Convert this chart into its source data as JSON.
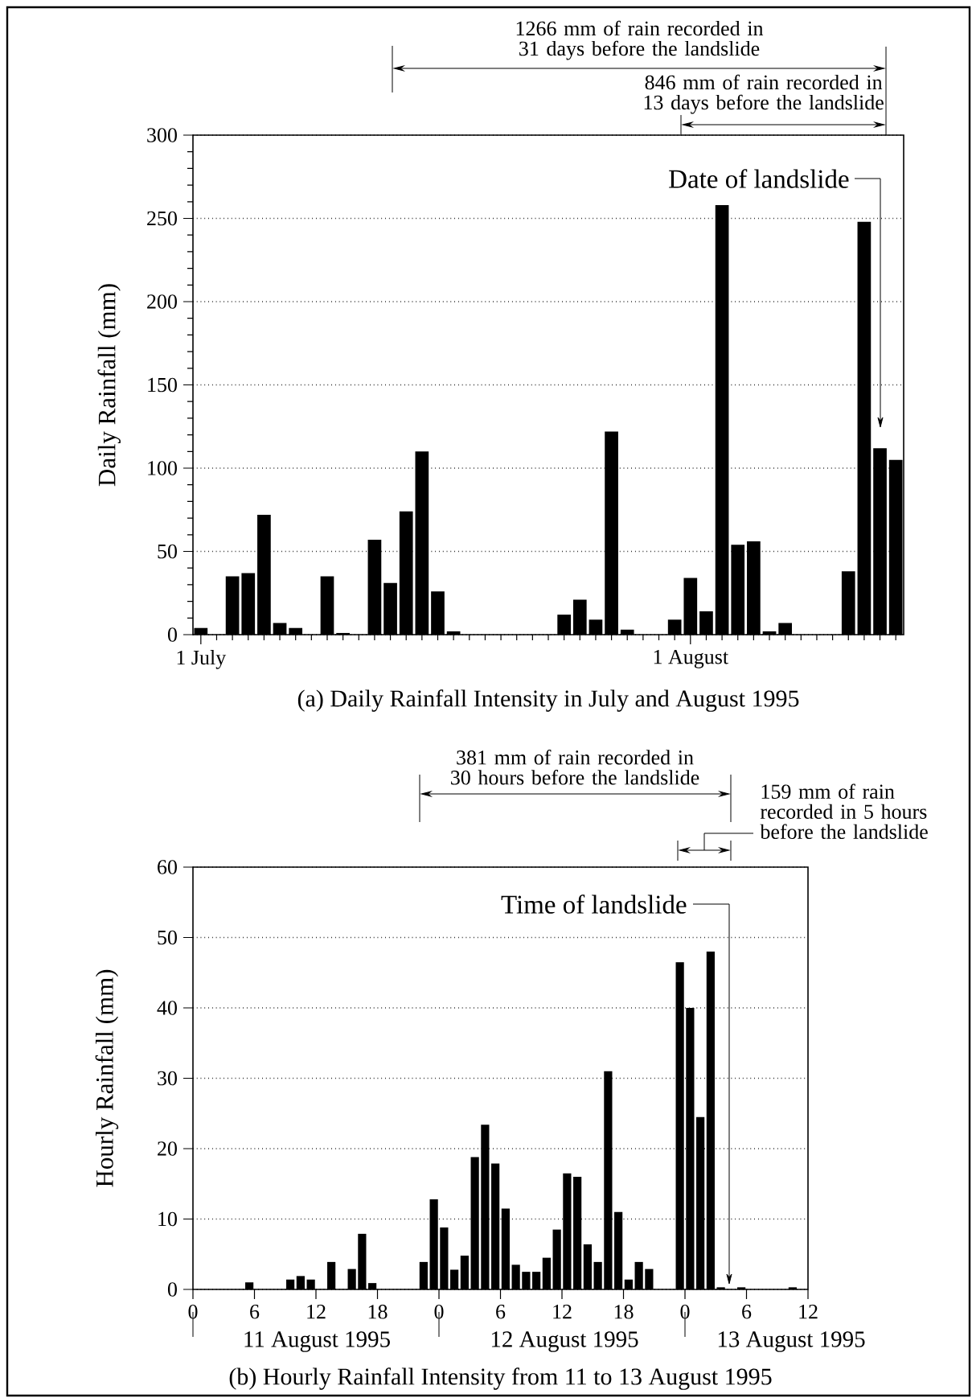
{
  "chart_data": [
    {
      "type": "bar",
      "title": "(a) Daily Rainfall Intensity in July and August 1995",
      "ylabel": "Daily Rainfall (mm)",
      "color": "#000000",
      "grid": "y",
      "x": [
        "1995-07-01",
        "1995-07-02",
        "1995-07-03",
        "1995-07-04",
        "1995-07-05",
        "1995-07-06",
        "1995-07-07",
        "1995-07-08",
        "1995-07-09",
        "1995-07-10",
        "1995-07-11",
        "1995-07-12",
        "1995-07-13",
        "1995-07-14",
        "1995-07-15",
        "1995-07-16",
        "1995-07-17",
        "1995-07-18",
        "1995-07-19",
        "1995-07-20",
        "1995-07-21",
        "1995-07-22",
        "1995-07-23",
        "1995-07-24",
        "1995-07-25",
        "1995-07-26",
        "1995-07-27",
        "1995-07-28",
        "1995-07-29",
        "1995-07-30",
        "1995-07-31",
        "1995-08-01",
        "1995-08-02",
        "1995-08-03",
        "1995-08-04",
        "1995-08-05",
        "1995-08-06",
        "1995-08-07",
        "1995-08-08",
        "1995-08-09",
        "1995-08-10",
        "1995-08-11",
        "1995-08-12",
        "1995-08-13",
        "1995-08-14"
      ],
      "values": [
        4,
        0,
        35,
        37,
        72,
        7,
        4,
        0,
        35,
        1,
        0,
        57,
        31,
        74,
        110,
        26,
        2,
        0,
        0,
        0,
        0,
        0,
        0,
        12,
        21,
        9,
        122,
        3,
        0,
        0,
        9,
        34,
        14,
        258,
        54,
        56,
        2,
        7,
        0,
        0,
        0,
        38,
        248,
        112,
        105
      ],
      "xlim": [
        "1995-06-30T12:00",
        "1995-08-14T12:00"
      ],
      "ylim": [
        0,
        300
      ],
      "xticks": [
        {
          "value": "1995-07-01",
          "label": "1 July"
        },
        {
          "value": "1995-07-02",
          "label": null
        },
        {
          "value": "1995-07-03",
          "label": null
        },
        {
          "value": "1995-07-04",
          "label": null
        },
        {
          "value": "1995-07-05",
          "label": null
        },
        {
          "value": "1995-07-06",
          "label": null
        },
        {
          "value": "1995-07-07",
          "label": null
        },
        {
          "value": "1995-07-08",
          "label": null
        },
        {
          "value": "1995-07-09",
          "label": null
        },
        {
          "value": "1995-07-10",
          "label": null
        },
        {
          "value": "1995-07-11",
          "label": null
        },
        {
          "value": "1995-07-12",
          "label": null
        },
        {
          "value": "1995-07-13",
          "label": null
        },
        {
          "value": "1995-07-14",
          "label": null
        },
        {
          "value": "1995-07-15",
          "label": null
        },
        {
          "value": "1995-07-16",
          "label": null
        },
        {
          "value": "1995-07-17",
          "label": null
        },
        {
          "value": "1995-07-18",
          "label": null
        },
        {
          "value": "1995-07-19",
          "label": null
        },
        {
          "value": "1995-07-20",
          "label": null
        },
        {
          "value": "1995-07-21",
          "label": null
        },
        {
          "value": "1995-07-22",
          "label": null
        },
        {
          "value": "1995-07-23",
          "label": null
        },
        {
          "value": "1995-07-24",
          "label": null
        },
        {
          "value": "1995-07-25",
          "label": null
        },
        {
          "value": "1995-07-26",
          "label": null
        },
        {
          "value": "1995-07-27",
          "label": null
        },
        {
          "value": "1995-07-28",
          "label": null
        },
        {
          "value": "1995-07-29",
          "label": null
        },
        {
          "value": "1995-07-30",
          "label": null
        },
        {
          "value": "1995-07-31",
          "label": null
        },
        {
          "value": "1995-08-01",
          "label": "1 August"
        },
        {
          "value": "1995-08-02",
          "label": null
        },
        {
          "value": "1995-08-03",
          "label": null
        },
        {
          "value": "1995-08-04",
          "label": null
        },
        {
          "value": "1995-08-05",
          "label": null
        },
        {
          "value": "1995-08-06",
          "label": null
        },
        {
          "value": "1995-08-07",
          "label": null
        },
        {
          "value": "1995-08-08",
          "label": null
        },
        {
          "value": "1995-08-09",
          "label": null
        },
        {
          "value": "1995-08-10",
          "label": null
        },
        {
          "value": "1995-08-11",
          "label": null
        },
        {
          "value": "1995-08-12",
          "label": null
        },
        {
          "value": "1995-08-13",
          "label": null
        },
        {
          "value": "1995-08-14",
          "label": null
        }
      ],
      "yticks": [
        0,
        {
          "value": 10,
          "label": null
        },
        {
          "value": 20,
          "label": null
        },
        {
          "value": 30,
          "label": null
        },
        {
          "value": 40,
          "label": null
        },
        50,
        {
          "value": 60,
          "label": null
        },
        {
          "value": 70,
          "label": null
        },
        {
          "value": 80,
          "label": null
        },
        {
          "value": 90,
          "label": null
        },
        100,
        {
          "value": 110,
          "label": null
        },
        {
          "value": 120,
          "label": null
        },
        {
          "value": 130,
          "label": null
        },
        {
          "value": 140,
          "label": null
        },
        150,
        {
          "value": 160,
          "label": null
        },
        {
          "value": 170,
          "label": null
        },
        {
          "value": 180,
          "label": null
        },
        {
          "value": 190,
          "label": null
        },
        200,
        {
          "value": 210,
          "label": null
        },
        {
          "value": 220,
          "label": null
        },
        {
          "value": 230,
          "label": null
        },
        {
          "value": 240,
          "label": null
        },
        250,
        {
          "value": 260,
          "label": null
        },
        {
          "value": 270,
          "label": null
        },
        {
          "value": 280,
          "label": null
        },
        {
          "value": 290,
          "label": null
        },
        300
      ],
      "annotations": [
        "1266 mm of rain recorded in 31 days before the landslide",
        "846 mm of rain recorded in 13 days before the landslide",
        "Date of landslide"
      ]
    },
    {
      "type": "bar",
      "title": "(b) Hourly Rainfall Intensity from 11 to 13 August 1995",
      "ylabel": "Hourly Rainfall (mm)",
      "color": "#000000",
      "grid": "y",
      "x": [
        "1995-08-11T00:30",
        "1995-08-11T01:30",
        "1995-08-11T02:30",
        "1995-08-11T03:30",
        "1995-08-11T04:30",
        "1995-08-11T05:30",
        "1995-08-11T06:30",
        "1995-08-11T07:30",
        "1995-08-11T08:30",
        "1995-08-11T09:30",
        "1995-08-11T10:30",
        "1995-08-11T11:30",
        "1995-08-11T12:30",
        "1995-08-11T13:30",
        "1995-08-11T14:30",
        "1995-08-11T15:30",
        "1995-08-11T16:30",
        "1995-08-11T17:30",
        "1995-08-11T18:30",
        "1995-08-11T19:30",
        "1995-08-11T20:30",
        "1995-08-11T21:30",
        "1995-08-11T22:30",
        "1995-08-11T23:30",
        "1995-08-12T00:30",
        "1995-08-12T01:30",
        "1995-08-12T02:30",
        "1995-08-12T03:30",
        "1995-08-12T04:30",
        "1995-08-12T05:30",
        "1995-08-12T06:30",
        "1995-08-12T07:30",
        "1995-08-12T08:30",
        "1995-08-12T09:30",
        "1995-08-12T10:30",
        "1995-08-12T11:30",
        "1995-08-12T12:30",
        "1995-08-12T13:30",
        "1995-08-12T14:30",
        "1995-08-12T15:30",
        "1995-08-12T16:30",
        "1995-08-12T17:30",
        "1995-08-12T18:30",
        "1995-08-12T19:30",
        "1995-08-12T20:30",
        "1995-08-12T21:30",
        "1995-08-12T22:30",
        "1995-08-12T23:30",
        "1995-08-13T00:30",
        "1995-08-13T01:30",
        "1995-08-13T02:30",
        "1995-08-13T03:30",
        "1995-08-13T04:30",
        "1995-08-13T05:30",
        "1995-08-13T06:30",
        "1995-08-13T07:30",
        "1995-08-13T08:30",
        "1995-08-13T09:30",
        "1995-08-13T10:30",
        "1995-08-13T11:30"
      ],
      "values": [
        0,
        0,
        0,
        0,
        0,
        1.0,
        0,
        0,
        0,
        1.4,
        1.9,
        1.4,
        0,
        3.9,
        0,
        2.9,
        7.9,
        0.9,
        0,
        0,
        0,
        0,
        3.9,
        12.8,
        8.8,
        2.8,
        4.8,
        18.8,
        23.4,
        17.9,
        11.5,
        3.5,
        2.5,
        2.5,
        4.5,
        8.5,
        16.5,
        16.0,
        6.4,
        3.9,
        31.0,
        11.0,
        1.4,
        3.9,
        2.9,
        0,
        0,
        46.5,
        40.0,
        24.5,
        48.0,
        0.3,
        0,
        0.3,
        0,
        0,
        0,
        0,
        0.3,
        0
      ],
      "xlim": [
        "1995-08-11T00:00",
        "1995-08-13T12:00"
      ],
      "ylim": [
        0,
        60
      ],
      "xticks": [
        {
          "value": "1995-08-11T00:00",
          "label": "0"
        },
        {
          "value": "1995-08-11T06:00",
          "label": "6"
        },
        {
          "value": "1995-08-11T12:00",
          "label": "12"
        },
        {
          "value": "1995-08-11T18:00",
          "label": "18"
        },
        {
          "value": "1995-08-12T00:00",
          "label": "0"
        },
        {
          "value": "1995-08-12T06:00",
          "label": "6"
        },
        {
          "value": "1995-08-12T12:00",
          "label": "12"
        },
        {
          "value": "1995-08-12T18:00",
          "label": "18"
        },
        {
          "value": "1995-08-13T00:00",
          "label": "0"
        },
        {
          "value": "1995-08-13T06:00",
          "label": "6"
        },
        {
          "value": "1995-08-13T12:00",
          "label": "12"
        }
      ],
      "yticks": [
        0,
        10,
        20,
        30,
        40,
        50,
        60
      ],
      "annotations": [
        "381 mm of rain recorded in 30 hours before the landslide",
        "159 mm of rain recorded in 5 hours before the landslide",
        "Time of landslide",
        "11 August 1995",
        "12 August 1995",
        "13 August 1995"
      ]
    }
  ]
}
